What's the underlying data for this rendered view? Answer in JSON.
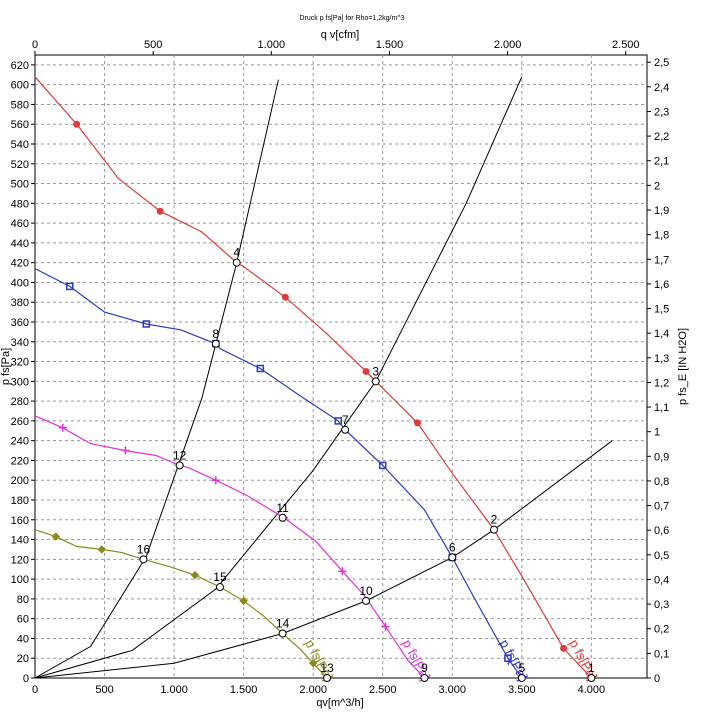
{
  "chart_data": {
    "type": "line",
    "title": "Druck p fs[Pa] for Rho=1,2kg/m^3",
    "x_top_label": "q v[cfm]",
    "xlabel": "qv[m^3/h]",
    "ylabel": "p fs[Pa]",
    "y_right_label": "p fs_E [IN H2O]",
    "xlim": [
      0,
      4400
    ],
    "ylim": [
      0,
      630
    ],
    "x_ticks": [
      0,
      500,
      1000,
      1500,
      2000,
      2500,
      3000,
      3500,
      4000
    ],
    "x_tick_labels": [
      "0",
      "500",
      "1.000",
      "1.500",
      "2.000",
      "2.500",
      "3.000",
      "3.500",
      "4.000"
    ],
    "y_ticks": [
      0,
      20,
      40,
      60,
      80,
      100,
      120,
      140,
      160,
      180,
      200,
      220,
      240,
      260,
      280,
      300,
      320,
      340,
      360,
      380,
      400,
      420,
      440,
      460,
      480,
      500,
      520,
      540,
      560,
      580,
      600,
      620
    ],
    "y_tick_labels": [
      "0",
      "20",
      "40",
      "60",
      "80",
      "100",
      "120",
      "140",
      "160",
      "180",
      "200",
      "220",
      "240",
      "260",
      "280",
      "300",
      "320",
      "340",
      "360",
      "380",
      "400",
      "420",
      "440",
      "460",
      "480",
      "500",
      "520",
      "540",
      "560",
      "580",
      "600",
      "620"
    ],
    "x_top_ticks": [
      0,
      500,
      1000,
      1500,
      2000,
      2500
    ],
    "x_top_tick_labels": [
      "0",
      "500",
      "1.000",
      "1.500",
      "2.000",
      "2.500"
    ],
    "y_right_ticks": [
      0,
      0.1,
      0.2,
      0.3,
      0.4,
      0.5,
      0.6,
      0.7,
      0.8,
      0.9,
      1.0,
      1.1,
      1.2,
      1.3,
      1.4,
      1.5,
      1.6,
      1.7,
      1.8,
      1.9,
      2.0,
      2.1,
      2.2,
      2.3,
      2.4,
      2.5
    ],
    "y_right_tick_labels": [
      "0",
      "0,1",
      "0,2",
      "0,3",
      "0,4",
      "0,5",
      "0,6",
      "0,7",
      "0,8",
      "0,9",
      "1",
      "1,1",
      "1,2",
      "1,3",
      "1,4",
      "1,5",
      "1,6",
      "1,7",
      "1,8",
      "1,9",
      "2",
      "2,1",
      "2,2",
      "2,3",
      "2,4",
      "2,5"
    ],
    "grid": true,
    "series": [
      {
        "name": "p fs[Pa]",
        "color": "#e03a3a",
        "marker": "circle",
        "x": [
          0,
          300,
          600,
          900,
          1200,
          1450,
          1500,
          1800,
          2100,
          2380,
          2450,
          2750,
          3000,
          3300,
          3500,
          3800,
          4000
        ],
        "y": [
          608,
          560,
          505,
          472,
          451,
          420,
          416,
          385,
          348,
          310,
          300,
          258,
          207,
          150,
          103,
          30,
          0
        ]
      },
      {
        "name": "p fs[Pa]",
        "color": "#2b3bc0",
        "marker": "square",
        "x": [
          0,
          250,
          500,
          800,
          1050,
          1300,
          1330,
          1620,
          1900,
          2180,
          2230,
          2500,
          2800,
          3000,
          3150,
          3400,
          3500
        ],
        "y": [
          414,
          396,
          370,
          358,
          352,
          338,
          333,
          313,
          286,
          260,
          251,
          215,
          170,
          122,
          83,
          20,
          0
        ]
      },
      {
        "name": "p fs[Pa]",
        "color": "#e030d8",
        "marker": "star",
        "x": [
          0,
          200,
          400,
          650,
          870,
          1040,
          1100,
          1300,
          1530,
          1790,
          2020,
          2210,
          2370,
          2520,
          2680,
          2800
        ],
        "y": [
          265,
          253,
          237,
          230,
          225,
          215,
          213,
          200,
          184,
          162,
          138,
          108,
          83,
          52,
          18,
          0
        ]
      },
      {
        "name": "p fs[Pa]",
        "color": "#8a8a1a",
        "marker": "diamond",
        "x": [
          0,
          150,
          300,
          480,
          620,
          780,
          980,
          1150,
          1330,
          1500,
          1650,
          1780,
          1900,
          2000,
          2100
        ],
        "y": [
          150,
          143,
          133,
          130,
          127,
          120,
          112,
          104,
          92,
          78,
          62,
          45,
          30,
          15,
          0
        ]
      }
    ],
    "system_curves": [
      {
        "x": [
          0,
          400,
          800,
          1200,
          1450,
          1750
        ],
        "y": [
          0,
          32,
          123,
          283,
          420,
          605
        ]
      },
      {
        "x": [
          0,
          700,
          1300,
          2000,
          2450,
          3100,
          3500
        ],
        "y": [
          0,
          28,
          90,
          210,
          300,
          480,
          608
        ]
      },
      {
        "x": [
          0,
          1000,
          1780,
          2380,
          3000,
          3300,
          4150
        ],
        "y": [
          0,
          15,
          45,
          78,
          122,
          150,
          240
        ]
      }
    ],
    "operating_points": [
      {
        "label": "1",
        "x": 4000,
        "y": 0
      },
      {
        "label": "2",
        "x": 3300,
        "y": 150
      },
      {
        "label": "3",
        "x": 2450,
        "y": 300
      },
      {
        "label": "4",
        "x": 1450,
        "y": 420
      },
      {
        "label": "5",
        "x": 3500,
        "y": 0
      },
      {
        "label": "6",
        "x": 3000,
        "y": 122
      },
      {
        "label": "7",
        "x": 2230,
        "y": 251
      },
      {
        "label": "8",
        "x": 1300,
        "y": 338
      },
      {
        "label": "9",
        "x": 2800,
        "y": 0
      },
      {
        "label": "10",
        "x": 2380,
        "y": 78
      },
      {
        "label": "11",
        "x": 1780,
        "y": 162
      },
      {
        "label": "12",
        "x": 1040,
        "y": 215
      },
      {
        "label": "13",
        "x": 2100,
        "y": 0
      },
      {
        "label": "14",
        "x": 1780,
        "y": 45
      },
      {
        "label": "15",
        "x": 1330,
        "y": 92
      },
      {
        "label": "16",
        "x": 780,
        "y": 120
      }
    ]
  }
}
